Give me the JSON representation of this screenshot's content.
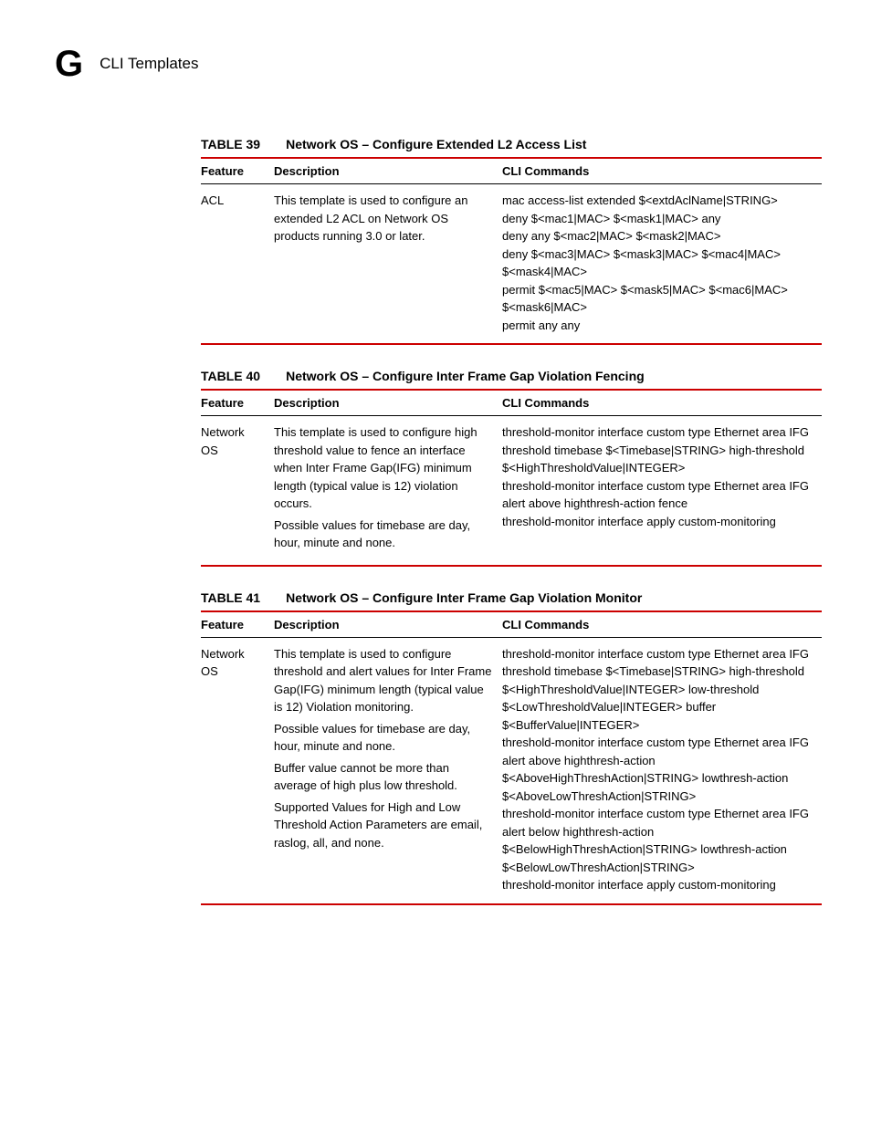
{
  "header": {
    "appendix_letter": "G",
    "section_title": "CLI Templates"
  },
  "colors": {
    "rule": "#cc0000",
    "text": "#000000",
    "background": "#ffffff"
  },
  "typography": {
    "appendix_letter_fontsize": 40,
    "section_title_fontsize": 17,
    "caption_fontsize": 14,
    "body_fontsize": 13
  },
  "columns": {
    "feature": "Feature",
    "description": "Description",
    "cli": "CLI Commands"
  },
  "tables": [
    {
      "number": "TABLE 39",
      "title": "Network OS – Configure Extended L2 Access List",
      "feature": "ACL",
      "description": [
        "This template is used to configure an extended L2 ACL on Network OS products running 3.0 or later."
      ],
      "cli": [
        "mac access-list extended $<extdAclName|STRING>",
        "deny $<mac1|MAC> $<mask1|MAC> any",
        "deny any $<mac2|MAC> $<mask2|MAC>",
        "deny $<mac3|MAC> $<mask3|MAC> $<mac4|MAC> $<mask4|MAC>",
        "permit $<mac5|MAC> $<mask5|MAC> $<mac6|MAC> $<mask6|MAC>",
        "permit any any"
      ]
    },
    {
      "number": "TABLE 40",
      "title": "Network OS – Configure Inter Frame Gap Violation Fencing",
      "feature": "Network OS",
      "description": [
        "This template is used to configure high threshold value to fence an interface when Inter Frame Gap(IFG) minimum length (typical value is 12) violation occurs.",
        "Possible values for timebase are day, hour, minute and none."
      ],
      "cli": [
        "threshold-monitor interface custom type Ethernet area IFG threshold timebase $<Timebase|STRING> high-threshold $<HighThresholdValue|INTEGER>",
        "threshold-monitor interface custom type Ethernet area IFG alert above highthresh-action fence",
        "threshold-monitor interface apply custom-monitoring"
      ]
    },
    {
      "number": "TABLE 41",
      "title": "Network OS – Configure Inter Frame Gap Violation Monitor",
      "feature": "Network OS",
      "description": [
        "This template is used to configure threshold and alert values for Inter Frame Gap(IFG) minimum length (typical value is 12) Violation monitoring.",
        "Possible values for timebase are day, hour, minute and none.",
        "Buffer value cannot be more than average of high plus low threshold.",
        "Supported Values for High and Low Threshold Action Parameters are email, raslog, all, and none."
      ],
      "cli": [
        "threshold-monitor interface custom type Ethernet area IFG threshold timebase $<Timebase|STRING> high-threshold $<HighThresholdValue|INTEGER> low-threshold $<LowThresholdValue|INTEGER> buffer $<BufferValue|INTEGER>",
        "threshold-monitor interface custom type Ethernet area IFG alert above highthresh-action $<AboveHighThreshAction|STRING> lowthresh-action $<AboveLowThreshAction|STRING>",
        "threshold-monitor interface custom type Ethernet area IFG alert below highthresh-action $<BelowHighThreshAction|STRING> lowthresh-action $<BelowLowThreshAction|STRING>",
        "threshold-monitor interface apply custom-monitoring"
      ]
    }
  ]
}
